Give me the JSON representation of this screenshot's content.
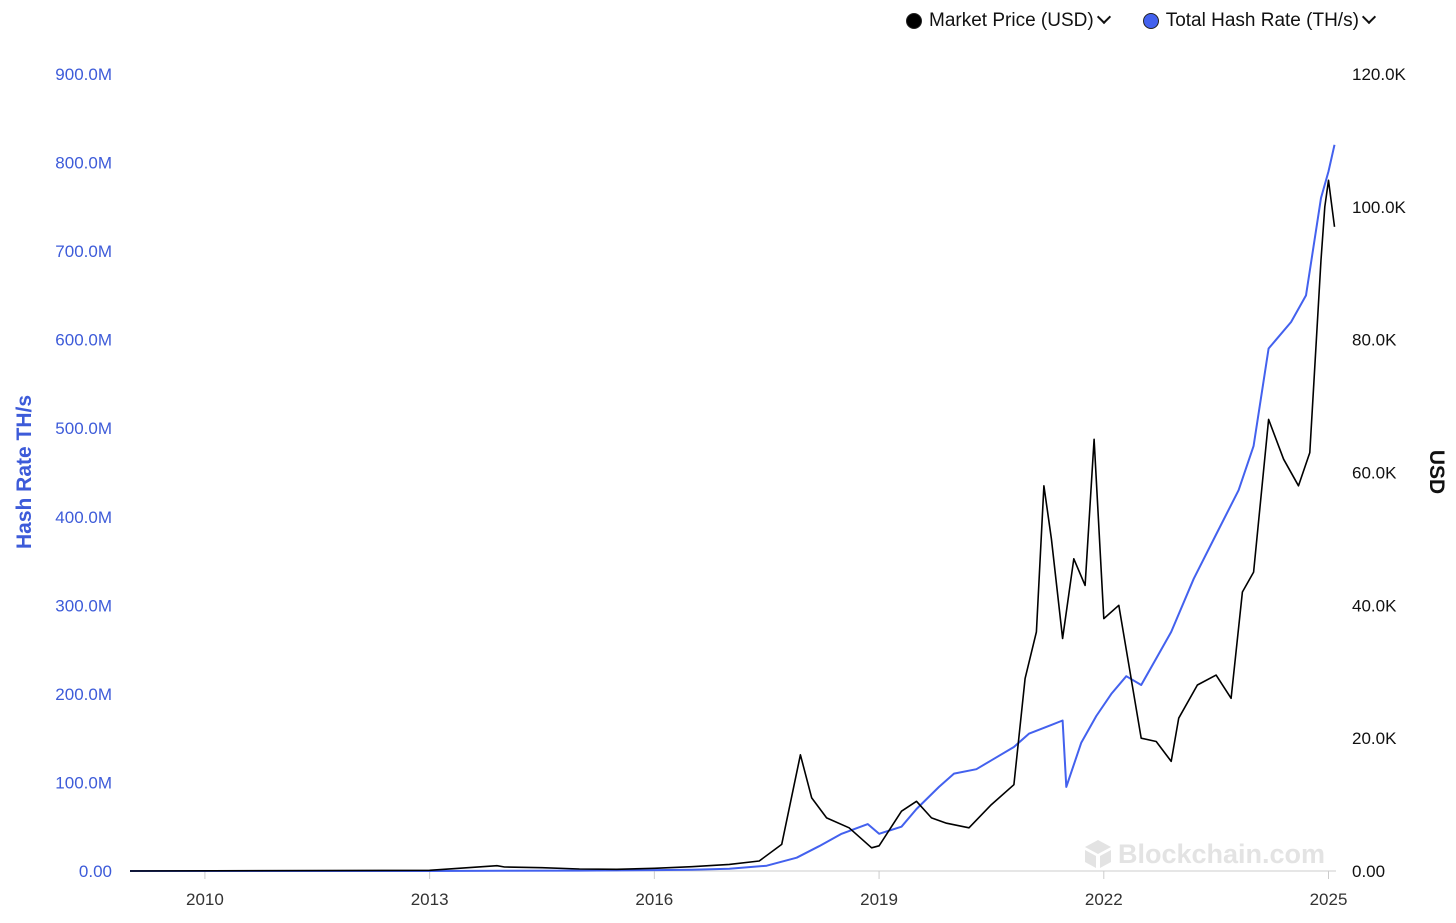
{
  "legend": {
    "items": [
      {
        "label": "Market Price (USD)",
        "color": "#000000",
        "icon": "chevron-down-icon"
      },
      {
        "label": "Total Hash Rate (TH/s)",
        "color": "#4361ee",
        "icon": "chevron-down-icon"
      }
    ]
  },
  "watermark": {
    "text": "Blockchain.com",
    "icon": "blockchain-logo-icon"
  },
  "chart_data": {
    "type": "line",
    "title": "",
    "xlabel": "",
    "x_ticks": [
      "2010",
      "2013",
      "2016",
      "2019",
      "2022",
      "2025"
    ],
    "x_tick_years": [
      2010,
      2013,
      2016,
      2019,
      2022,
      2025
    ],
    "xlim": [
      2009.0,
      2025.1
    ],
    "left_axis": {
      "label": "Hash Rate TH/s",
      "ylim": [
        0,
        900000000
      ],
      "ticks": [
        "0.00",
        "100.0M",
        "200.0M",
        "300.0M",
        "400.0M",
        "500.0M",
        "600.0M",
        "700.0M",
        "800.0M",
        "900.0M"
      ],
      "color": "#3d5bd9"
    },
    "right_axis": {
      "label": "USD",
      "ylim": [
        0,
        120000
      ],
      "ticks": [
        "0.00",
        "20.0K",
        "40.0K",
        "60.0K",
        "80.0K",
        "100.0K",
        "120.0K"
      ],
      "color": "#111111"
    },
    "grid": false,
    "legend_position": "top-right",
    "series": [
      {
        "name": "Market Price (USD)",
        "axis": "right",
        "color": "#000000",
        "x": [
          2009.0,
          2013.0,
          2013.9,
          2014.0,
          2014.5,
          2015.0,
          2015.5,
          2016.0,
          2016.5,
          2017.0,
          2017.4,
          2017.7,
          2017.95,
          2018.1,
          2018.3,
          2018.6,
          2018.9,
          2019.0,
          2019.3,
          2019.5,
          2019.7,
          2019.9,
          2020.2,
          2020.5,
          2020.8,
          2020.95,
          2021.1,
          2021.2,
          2021.3,
          2021.45,
          2021.6,
          2021.75,
          2021.87,
          2022.0,
          2022.2,
          2022.35,
          2022.5,
          2022.7,
          2022.9,
          2023.0,
          2023.25,
          2023.5,
          2023.7,
          2023.85,
          2024.0,
          2024.2,
          2024.4,
          2024.6,
          2024.75,
          2024.9,
          2024.95,
          2025.0,
          2025.08
        ],
        "y": [
          0,
          100,
          800,
          600,
          500,
          300,
          250,
          400,
          650,
          1000,
          1500,
          4000,
          17500,
          11000,
          8000,
          6500,
          3500,
          3800,
          9000,
          10500,
          8000,
          7200,
          6500,
          10000,
          13000,
          29000,
          36000,
          58000,
          50000,
          35000,
          47000,
          43000,
          65000,
          38000,
          40000,
          30000,
          20000,
          19500,
          16500,
          23000,
          28000,
          29500,
          26000,
          42000,
          45000,
          68000,
          62000,
          58000,
          63000,
          92000,
          100000,
          104000,
          97000
        ]
      },
      {
        "name": "Total Hash Rate (TH/s)",
        "axis": "left",
        "color": "#4361ee",
        "x": [
          2009.0,
          2013.0,
          2014.0,
          2015.0,
          2016.0,
          2016.5,
          2017.0,
          2017.5,
          2017.9,
          2018.2,
          2018.5,
          2018.85,
          2019.0,
          2019.3,
          2019.5,
          2019.8,
          2020.0,
          2020.3,
          2020.5,
          2020.8,
          2021.0,
          2021.3,
          2021.45,
          2021.5,
          2021.7,
          2021.9,
          2022.1,
          2022.3,
          2022.5,
          2022.7,
          2022.9,
          2023.2,
          2023.5,
          2023.8,
          2024.0,
          2024.2,
          2024.3,
          2024.5,
          2024.7,
          2024.9,
          2025.0,
          2025.08
        ],
        "y": [
          0,
          10000,
          200000,
          400000,
          1000000,
          1500000,
          2500000,
          6000000,
          15000000,
          28000000,
          42000000,
          53000000,
          42000000,
          50000000,
          70000000,
          95000000,
          110000000,
          115000000,
          125000000,
          140000000,
          155000000,
          165000000,
          170000000,
          95000000,
          145000000,
          175000000,
          200000000,
          220000000,
          210000000,
          240000000,
          270000000,
          330000000,
          380000000,
          430000000,
          480000000,
          590000000,
          600000000,
          620000000,
          650000000,
          760000000,
          790000000,
          820000000
        ]
      }
    ]
  }
}
